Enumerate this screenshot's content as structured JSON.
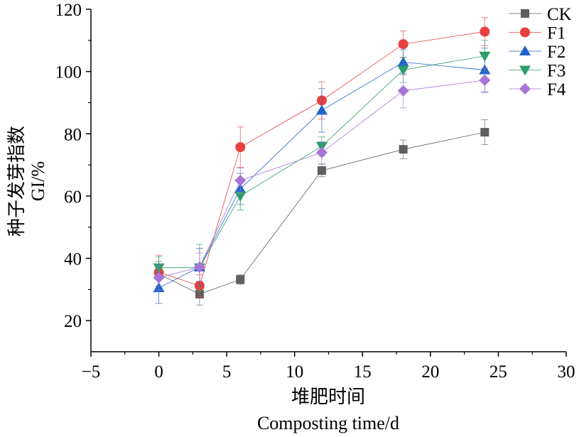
{
  "chart_data": {
    "type": "line",
    "x_axis": {
      "label_cn": "堆肥时间",
      "label_en": "Composting time/d",
      "range": [
        -5,
        30
      ],
      "ticks": [
        -5,
        0,
        5,
        10,
        15,
        20,
        25,
        30
      ],
      "tick_labels": [
        "−5",
        "0",
        "5",
        "10",
        "15",
        "20",
        "25",
        "30"
      ]
    },
    "y_axis": {
      "label_cn": "种子发芽指数",
      "label_en": "GI/%",
      "range": [
        10,
        120
      ],
      "ticks": [
        20,
        40,
        60,
        80,
        100,
        120
      ],
      "tick_labels": [
        "20",
        "40",
        "60",
        "80",
        "100",
        "120"
      ]
    },
    "x": [
      0,
      3,
      6,
      12,
      18,
      24
    ],
    "series": [
      {
        "name": "CK",
        "marker": "square",
        "color": "#5f5f5f",
        "values": [
          35,
          28.5,
          33.2,
          68.2,
          75,
          80.5
        ],
        "errors": [
          4,
          3.5,
          1.5,
          2,
          3,
          4
        ]
      },
      {
        "name": "F1",
        "marker": "circle",
        "color": "#e8403e",
        "values": [
          35.5,
          31.2,
          75.7,
          90.7,
          108.8,
          112.8
        ],
        "errors": [
          5.5,
          3.5,
          6.5,
          6,
          4.2,
          4.5
        ]
      },
      {
        "name": "F2",
        "marker": "triangle-up",
        "color": "#1f62cc",
        "values": [
          30.5,
          37.2,
          62.3,
          87.5,
          103,
          100.5
        ],
        "errors": [
          5,
          6,
          5,
          7,
          4,
          7
        ]
      },
      {
        "name": "F3",
        "marker": "triangle-down",
        "color": "#2e9e69",
        "values": [
          37,
          37,
          60,
          76,
          100.5,
          105
        ],
        "errors": [
          3.5,
          7.5,
          4.5,
          3,
          4,
          5
        ]
      },
      {
        "name": "F4",
        "marker": "diamond",
        "color": "#a875d6",
        "values": [
          33.8,
          37.2,
          65,
          74,
          93.8,
          97.2
        ],
        "errors": [
          4,
          4.5,
          4,
          3.5,
          5.5,
          4
        ]
      }
    ],
    "legend_position": "top-right"
  }
}
